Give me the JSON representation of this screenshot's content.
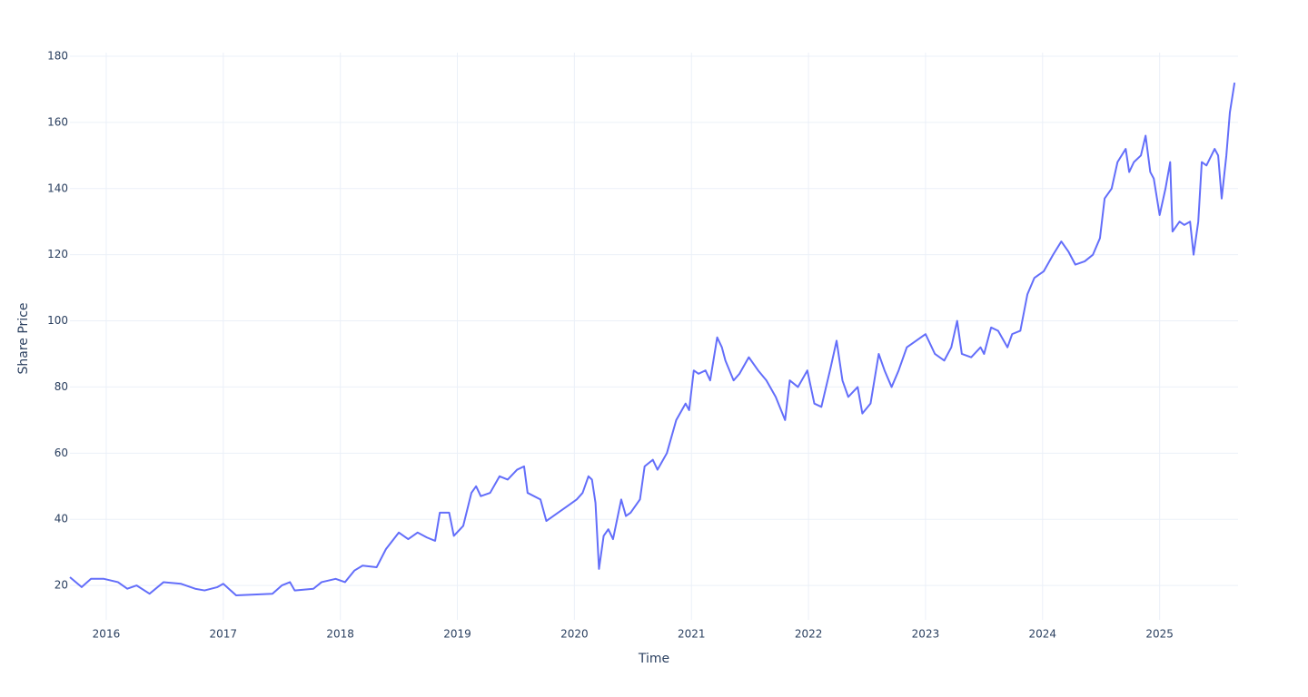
{
  "chart_data": {
    "type": "line",
    "x_label": "Time",
    "y_label": "Share Price",
    "color": "#636efa",
    "grid": true,
    "xlim": [
      2015.69,
      2025.67
    ],
    "ylim": [
      9.6,
      180
    ],
    "xticks": [
      2016,
      2017,
      2018,
      2019,
      2020,
      2021,
      2022,
      2023,
      2024,
      2025
    ],
    "yticks": [
      20,
      40,
      60,
      80,
      100,
      120,
      140,
      160,
      180
    ],
    "x": [
      2015.69,
      2015.79,
      2015.87,
      2015.98,
      2016.1,
      2016.18,
      2016.26,
      2016.37,
      2016.49,
      2016.64,
      2016.76,
      2016.84,
      2016.95,
      2017.0,
      2017.11,
      2017.42,
      2017.5,
      2017.57,
      2017.61,
      2017.77,
      2017.84,
      2017.96,
      2018.04,
      2018.12,
      2018.19,
      2018.31,
      2018.39,
      2018.5,
      2018.58,
      2018.66,
      2018.74,
      2018.81,
      2018.85,
      2018.93,
      2018.97,
      2019.05,
      2019.12,
      2019.16,
      2019.2,
      2019.28,
      2019.36,
      2019.43,
      2019.51,
      2019.57,
      2019.6,
      2019.71,
      2019.76,
      2019.86,
      2019.94,
      2020.02,
      2020.07,
      2020.12,
      2020.15,
      2020.18,
      2020.21,
      2020.25,
      2020.29,
      2020.33,
      2020.4,
      2020.44,
      2020.48,
      2020.56,
      2020.6,
      2020.67,
      2020.71,
      2020.79,
      2020.87,
      2020.95,
      2020.98,
      2021.02,
      2021.06,
      2021.12,
      2021.16,
      2021.22,
      2021.26,
      2021.29,
      2021.36,
      2021.41,
      2021.49,
      2021.57,
      2021.64,
      2021.72,
      2021.8,
      2021.84,
      2021.91,
      2021.99,
      2022.05,
      2022.11,
      2022.19,
      2022.24,
      2022.29,
      2022.34,
      2022.42,
      2022.46,
      2022.53,
      2022.6,
      2022.65,
      2022.71,
      2022.77,
      2022.84,
      2022.92,
      2023.0,
      2023.08,
      2023.16,
      2023.22,
      2023.27,
      2023.31,
      2023.39,
      2023.47,
      2023.5,
      2023.56,
      2023.62,
      2023.7,
      2023.74,
      2023.81,
      2023.87,
      2023.93,
      2024.01,
      2024.09,
      2024.16,
      2024.22,
      2024.28,
      2024.36,
      2024.43,
      2024.49,
      2024.53,
      2024.59,
      2024.64,
      2024.71,
      2024.74,
      2024.78,
      2024.84,
      2024.88,
      2024.92,
      2024.95,
      2025.0,
      2025.05,
      2025.09,
      2025.11,
      2025.17,
      2025.21,
      2025.26,
      2025.29,
      2025.33,
      2025.36,
      2025.4,
      2025.47,
      2025.5,
      2025.53,
      2025.57,
      2025.6,
      2025.64
    ],
    "values": [
      22.5,
      19.5,
      22,
      22,
      21,
      19,
      20,
      17.5,
      21,
      20.5,
      19,
      18.5,
      19.5,
      20.5,
      17,
      17.5,
      20,
      21,
      18.5,
      19,
      21,
      22,
      21,
      24.5,
      26,
      25.5,
      31,
      36,
      34,
      36,
      34.5,
      33.5,
      42,
      42,
      35,
      38,
      48,
      50,
      47,
      48,
      53,
      52,
      55,
      56,
      48,
      46,
      39.5,
      42,
      44,
      46,
      48,
      53,
      52,
      45,
      25,
      35,
      37,
      34,
      46,
      41,
      42,
      46,
      56,
      58,
      55,
      60,
      70,
      75,
      73,
      85,
      84,
      85,
      82,
      95,
      92,
      88,
      82,
      84,
      89,
      85,
      82,
      77,
      70,
      82,
      80,
      85,
      75,
      74,
      86,
      94,
      82,
      77,
      80,
      72,
      75,
      90,
      85,
      80,
      85,
      92,
      94,
      96,
      90,
      88,
      92,
      100,
      90,
      89,
      92,
      90,
      98,
      97,
      92,
      96,
      97,
      108,
      113,
      115,
      120,
      124,
      121,
      117,
      118,
      120,
      125,
      137,
      140,
      148,
      152,
      145,
      148,
      150,
      156,
      145,
      143,
      132,
      140,
      148,
      127,
      130,
      129,
      130,
      120,
      130,
      148,
      147,
      152,
      150,
      137,
      150,
      163,
      172
    ]
  }
}
